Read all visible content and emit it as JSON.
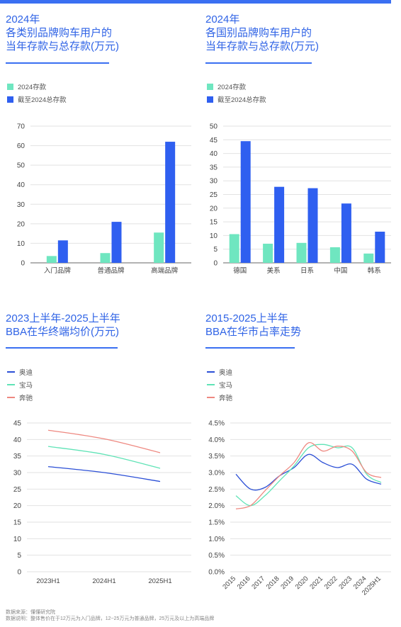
{
  "colors": {
    "accent": "#3a6ff2",
    "teal": "#6fe6c0",
    "blue": "#2f5ff0",
    "audi": "#2b4fd6",
    "bmw": "#5fe3b6",
    "benz": "#ee8880",
    "grid": "#e2e2e2",
    "axis": "#444444"
  },
  "footer": {
    "source": "数据来源：懂懂研究院",
    "note": "数据说明：整体售价在于12万元为入门品牌，12~25万元为普通品牌，25万元及以上为高端品牌"
  },
  "chart_data": [
    {
      "type": "bar",
      "title": "2024年\n各类别品牌购车用户的\n当年存款与总存款(万元)",
      "categories": [
        "入门品牌",
        "普通品牌",
        "高端品牌"
      ],
      "series": [
        {
          "name": "2024存款",
          "values": [
            3.5,
            5,
            15.5
          ]
        },
        {
          "name": "截至2024总存款",
          "values": [
            11.5,
            21,
            62
          ]
        }
      ],
      "yticks": [
        0,
        10,
        20,
        30,
        40,
        50,
        60,
        70
      ],
      "ylim": [
        0,
        70
      ],
      "grid": true,
      "legend": "top-left"
    },
    {
      "type": "bar",
      "title": "2024年\n各国别品牌购车用户的\n当年存款与总存款(万元)",
      "categories": [
        "德国",
        "美系",
        "日系",
        "中国",
        "韩系"
      ],
      "series": [
        {
          "name": "2024存款",
          "values": [
            10.5,
            7,
            7.3,
            5.7,
            3.4
          ]
        },
        {
          "name": "截至2024总存款",
          "values": [
            44.5,
            27.8,
            27.3,
            21.7,
            11.4
          ]
        }
      ],
      "yticks": [
        0,
        5,
        10,
        15,
        20,
        25,
        30,
        35,
        40,
        45,
        50
      ],
      "ylim": [
        0,
        50
      ],
      "grid": true,
      "legend": "top-left"
    },
    {
      "type": "line",
      "title": "2023上半年-2025上半年\nBBA在华终端均价(万元)",
      "x": [
        "2023H1",
        "2024H1",
        "2025H1"
      ],
      "series": [
        {
          "name": "奥迪",
          "values": [
            31.8,
            30.0,
            27.3
          ]
        },
        {
          "name": "宝马",
          "values": [
            37.9,
            35.5,
            31.3
          ]
        },
        {
          "name": "奔驰",
          "values": [
            42.8,
            40.2,
            36.0
          ]
        }
      ],
      "yticks": [
        0,
        5,
        10,
        15,
        20,
        25,
        30,
        35,
        40,
        45
      ],
      "ylim": [
        0,
        45
      ],
      "grid": true,
      "legend": "top-left"
    },
    {
      "type": "line",
      "title": "2015-2025上半年\nBBA在华市占率走势",
      "x": [
        "2015",
        "2016",
        "2017",
        "2018",
        "2019",
        "2020",
        "2021",
        "2022",
        "2023",
        "2024",
        "2025H1"
      ],
      "series": [
        {
          "name": "奥迪",
          "values": [
            2.95,
            2.5,
            2.55,
            2.9,
            3.15,
            3.55,
            3.3,
            3.15,
            3.25,
            2.8,
            2.65
          ]
        },
        {
          "name": "宝马",
          "values": [
            2.3,
            2.0,
            2.3,
            2.75,
            3.2,
            3.75,
            3.85,
            3.75,
            3.75,
            2.95,
            2.7
          ]
        },
        {
          "name": "奔驰",
          "values": [
            1.9,
            2.0,
            2.45,
            2.9,
            3.3,
            3.9,
            3.65,
            3.8,
            3.65,
            3.0,
            2.85
          ]
        }
      ],
      "ytick_labels": [
        "0.0%",
        "0.5%",
        "1.0%",
        "1.5%",
        "2.0%",
        "2.5%",
        "3.0%",
        "3.5%",
        "4.0%",
        "4.5%"
      ],
      "yticks": [
        0,
        0.5,
        1,
        1.5,
        2,
        2.5,
        3,
        3.5,
        4,
        4.5
      ],
      "ylim": [
        0,
        4.5
      ],
      "grid": true,
      "legend": "top-left"
    }
  ]
}
